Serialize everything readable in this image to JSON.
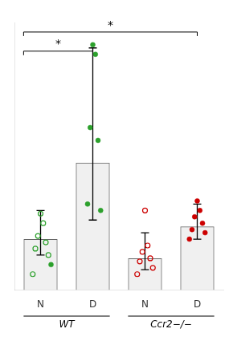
{
  "chart_data": {
    "type": "bar",
    "categories": [
      "N",
      "D",
      "N",
      "D"
    ],
    "ylim": [
      0,
      42
    ],
    "tick_labels": "x",
    "grid": false,
    "series": [
      {
        "type": "bar",
        "values": [
          8.0,
          20.0,
          5.0,
          10.0
        ],
        "error_low": [
          2.5,
          9.0,
          1.8,
          2.0
        ],
        "error_high": [
          4.5,
          18.0,
          4.0,
          3.5
        ]
      },
      {
        "type": "scatter",
        "color": "#2ca02c",
        "marker": "circle_open",
        "values": [
          [
            12.0,
            10.5,
            8.5,
            7.5,
            6.5,
            5.5,
            2.5
          ],
          [],
          [],
          []
        ]
      },
      {
        "type": "scatter",
        "color": "#2ca02c",
        "marker": "circle",
        "values": [
          [
            4.0
          ],
          [
            38.5,
            37.0,
            25.5,
            23.5,
            13.5,
            12.5
          ],
          [],
          []
        ]
      },
      {
        "type": "scatter",
        "color": "#cc0000",
        "marker": "circle_open",
        "values": [
          [],
          [],
          [
            12.5,
            7.0,
            6.0,
            5.0,
            4.5,
            3.5,
            2.5
          ],
          []
        ]
      },
      {
        "type": "scatter",
        "color": "#cc0000",
        "marker": "circle",
        "values": [
          [],
          [],
          [],
          [
            14.0,
            12.5,
            11.5,
            10.5,
            9.5,
            9.0,
            8.0
          ]
        ]
      }
    ],
    "annotations": [
      {
        "text": "*",
        "from": 0,
        "to": 1,
        "y": 37.5
      },
      {
        "text": "*",
        "from": 0,
        "to": 3,
        "y": 40.5
      }
    ],
    "group_labels": [
      {
        "text": "WT",
        "from": 0,
        "to": 1
      },
      {
        "text": "Ccr2−/−",
        "from": 2,
        "to": 3
      }
    ]
  }
}
